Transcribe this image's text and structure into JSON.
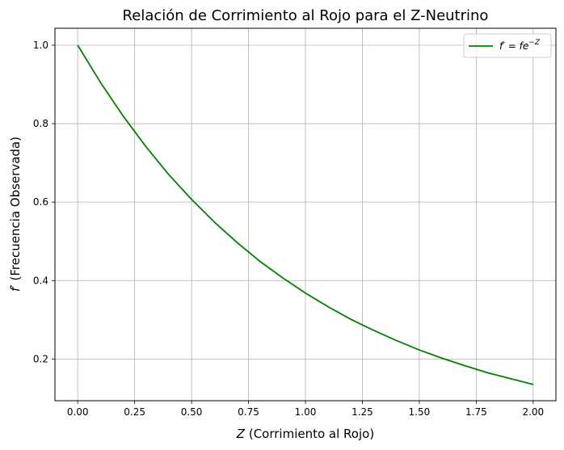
{
  "chart_data": {
    "type": "line",
    "title": "Relación de Corrimiento al Rojo para el Z-Neutrino",
    "xlabel": {
      "symbol": "Z",
      "text": " (Corrimiento al Rojo)"
    },
    "ylabel": {
      "symbol": "f′",
      "text": " (Frecuencia Observada)"
    },
    "xlim": [
      -0.1,
      2.1
    ],
    "ylim": [
      0.0936,
      1.0432
    ],
    "xticks": [
      0.0,
      0.25,
      0.5,
      0.75,
      1.0,
      1.25,
      1.5,
      1.75,
      2.0
    ],
    "xtick_labels": [
      "0.00",
      "0.25",
      "0.50",
      "0.75",
      "1.00",
      "1.25",
      "1.50",
      "1.75",
      "2.00"
    ],
    "yticks": [
      0.2,
      0.4,
      0.6,
      0.8,
      1.0
    ],
    "ytick_labels": [
      "0.2",
      "0.4",
      "0.6",
      "0.8",
      "1.0"
    ],
    "grid": true,
    "legend_position": "top-right",
    "series": [
      {
        "name": {
          "base": "f′ = fe",
          "sup": "−Z"
        },
        "color": "#008000",
        "x": [
          0.0,
          0.1,
          0.2,
          0.3,
          0.4,
          0.5,
          0.6,
          0.7,
          0.8,
          0.9,
          1.0,
          1.1,
          1.2,
          1.3,
          1.4,
          1.5,
          1.6,
          1.7,
          1.8,
          1.9,
          2.0
        ],
        "y": [
          1.0,
          0.905,
          0.819,
          0.741,
          0.67,
          0.607,
          0.549,
          0.497,
          0.449,
          0.407,
          0.368,
          0.333,
          0.301,
          0.273,
          0.247,
          0.223,
          0.202,
          0.183,
          0.165,
          0.15,
          0.135
        ]
      }
    ]
  }
}
